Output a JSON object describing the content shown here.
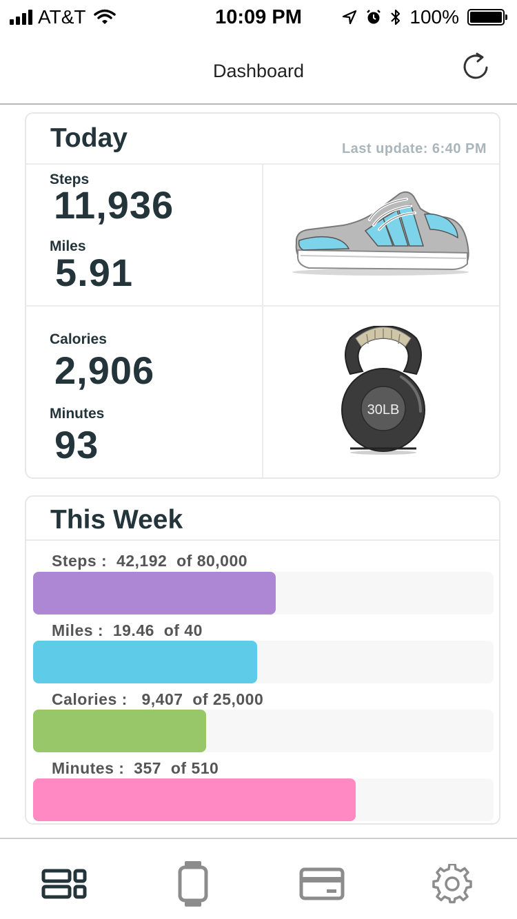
{
  "status_bar": {
    "carrier": "AT&T",
    "time": "10:09 PM",
    "battery": "100%",
    "battery_level": 1.0
  },
  "nav": {
    "title": "Dashboard",
    "refresh_icon": "refresh-icon"
  },
  "today": {
    "title": "Today",
    "last_update": "Last update: 6:40 PM",
    "steps_label": "Steps",
    "steps_value": "11,936",
    "miles_label": "Miles",
    "miles_value": "5.91",
    "calories_label": "Calories",
    "calories_value": "2,906",
    "minutes_label": "Minutes",
    "minutes_value": "93",
    "kettlebell_text": "30LB"
  },
  "week": {
    "title": "This Week",
    "items": [
      {
        "label": "Steps :  42,192  of 80,000",
        "fraction": 0.5274,
        "color": "#ad87d4"
      },
      {
        "label": "Miles :  19.46  of 40",
        "fraction": 0.4865,
        "color": "#5ecce8"
      },
      {
        "label": "Calories :   9,407  of 25,000",
        "fraction": 0.3763,
        "color": "#97c769"
      },
      {
        "label": "Minutes :  357  of 510",
        "fraction": 0.7,
        "color": "#ff89c2"
      }
    ]
  },
  "tabs": [
    {
      "icon": "dashboard-icon",
      "active": true
    },
    {
      "icon": "watch-icon",
      "active": false
    },
    {
      "icon": "card-icon",
      "active": false
    },
    {
      "icon": "gear-icon",
      "active": false
    }
  ],
  "colors": {
    "text_dark": "#23343a",
    "tab_active": "#23343a",
    "tab_inactive": "#8c8c8c"
  }
}
